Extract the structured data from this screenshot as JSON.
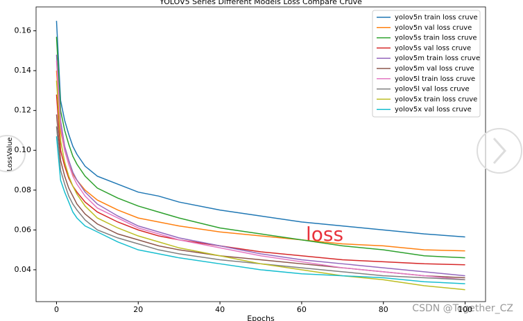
{
  "chart_data": {
    "type": "line",
    "title": "YOLOV5 Series Different Models Loss Compare Cruve",
    "xlabel": "Epochs",
    "ylabel": "LossValue",
    "annotation": "loss",
    "x": [
      0,
      1,
      2,
      3,
      4,
      5,
      7,
      10,
      15,
      20,
      25,
      30,
      40,
      50,
      60,
      70,
      80,
      90,
      100
    ],
    "xlim": [
      -5,
      105
    ],
    "xticks": [
      0,
      20,
      40,
      60,
      80,
      100
    ],
    "ylim": [
      0.024,
      0.172
    ],
    "yticks": [
      0.04,
      0.06,
      0.08,
      {
        "value": 0.1,
        "label": "0.10"
      },
      0.12,
      0.14,
      0.16
    ],
    "legend": "upper right",
    "series": [
      {
        "name": "yolov5n train loss cruve",
        "color": "#1f77b4",
        "values": [
          0.165,
          0.125,
          0.115,
          0.108,
          0.102,
          0.098,
          0.092,
          0.087,
          0.083,
          0.079,
          0.077,
          0.074,
          0.07,
          0.067,
          0.064,
          0.062,
          0.06,
          0.058,
          0.0565
        ]
      },
      {
        "name": "yolov5n val loss cruve",
        "color": "#ff7f0e",
        "values": [
          0.14,
          0.11,
          0.1,
          0.093,
          0.088,
          0.085,
          0.08,
          0.075,
          0.07,
          0.066,
          0.064,
          0.062,
          0.059,
          0.057,
          0.055,
          0.053,
          0.052,
          0.05,
          0.0495
        ]
      },
      {
        "name": "yolov5s train loss cruve",
        "color": "#2ca02c",
        "values": [
          0.157,
          0.12,
          0.11,
          0.103,
          0.097,
          0.093,
          0.087,
          0.081,
          0.076,
          0.072,
          0.069,
          0.066,
          0.061,
          0.058,
          0.055,
          0.052,
          0.05,
          0.047,
          0.046
        ]
      },
      {
        "name": "yolov5s val loss cruve",
        "color": "#d62728",
        "values": [
          0.128,
          0.1,
          0.092,
          0.086,
          0.082,
          0.079,
          0.074,
          0.069,
          0.064,
          0.06,
          0.057,
          0.055,
          0.052,
          0.049,
          0.047,
          0.045,
          0.044,
          0.043,
          0.0425
        ]
      },
      {
        "name": "yolov5m train loss cruve",
        "color": "#9467bd",
        "values": [
          0.148,
          0.115,
          0.102,
          0.095,
          0.089,
          0.085,
          0.079,
          0.073,
          0.067,
          0.062,
          0.059,
          0.056,
          0.052,
          0.048,
          0.045,
          0.043,
          0.041,
          0.039,
          0.037
        ]
      },
      {
        "name": "yolov5m val loss cruve",
        "color": "#8c564b",
        "values": [
          0.118,
          0.095,
          0.087,
          0.081,
          0.077,
          0.073,
          0.068,
          0.063,
          0.058,
          0.055,
          0.052,
          0.05,
          0.047,
          0.045,
          0.043,
          0.041,
          0.039,
          0.037,
          0.036
        ]
      },
      {
        "name": "yolov5l train loss cruve",
        "color": "#e377c2",
        "values": [
          0.145,
          0.112,
          0.1,
          0.093,
          0.087,
          0.083,
          0.077,
          0.071,
          0.066,
          0.061,
          0.058,
          0.055,
          0.051,
          0.047,
          0.044,
          0.041,
          0.039,
          0.037,
          0.035
        ]
      },
      {
        "name": "yolov5l val loss cruve",
        "color": "#7f7f7f",
        "values": [
          0.112,
          0.09,
          0.083,
          0.077,
          0.073,
          0.07,
          0.065,
          0.06,
          0.056,
          0.053,
          0.05,
          0.048,
          0.045,
          0.043,
          0.041,
          0.039,
          0.037,
          0.036,
          0.035
        ]
      },
      {
        "name": "yolov5x train loss cruve",
        "color": "#bcbd22",
        "values": [
          0.135,
          0.105,
          0.094,
          0.087,
          0.082,
          0.078,
          0.072,
          0.066,
          0.061,
          0.057,
          0.054,
          0.051,
          0.047,
          0.043,
          0.04,
          0.037,
          0.035,
          0.032,
          0.03
        ]
      },
      {
        "name": "yolov5x val loss cruve",
        "color": "#17becf",
        "values": [
          0.107,
          0.085,
          0.079,
          0.074,
          0.069,
          0.066,
          0.062,
          0.059,
          0.054,
          0.05,
          0.048,
          0.046,
          0.043,
          0.04,
          0.038,
          0.037,
          0.036,
          0.034,
          0.033
        ]
      }
    ]
  },
  "watermark": "CSDN @Together_CZ"
}
